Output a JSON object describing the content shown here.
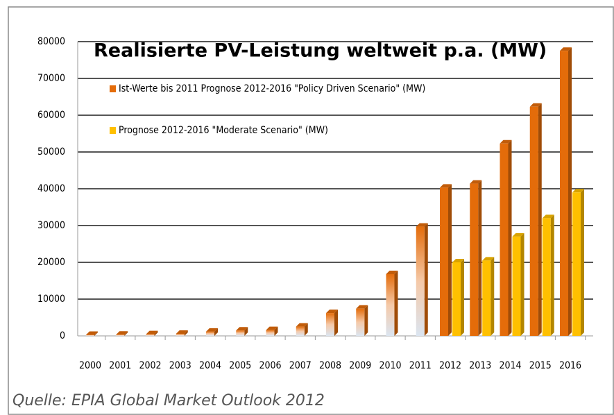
{
  "chart_data": {
    "type": "bar",
    "title": "Realisierte PV-Leistung weltweit p.a. (MW)",
    "source": "Quelle: EPIA Global Market Outlook 2012",
    "categories": [
      "2000",
      "2001",
      "2002",
      "2003",
      "2004",
      "2005",
      "2006",
      "2007",
      "2008",
      "2009",
      "2010",
      "2011",
      "2012",
      "2013",
      "2014",
      "2015",
      "2016"
    ],
    "series": [
      {
        "name": "Ist-Werte bis 2011 Prognose 2012-2016 \"Policy Driven Scenario\" (MW)",
        "color": "#e46c0a",
        "values": [
          277,
          334,
          439,
          575,
          1159,
          1459,
          1571,
          2524,
          6200,
          7400,
          16800,
          29700,
          40300,
          41400,
          52300,
          62300,
          77500
        ]
      },
      {
        "name": "Prognose 2012-2016 \"Moderate Scenario\" (MW)",
        "color": "#ffc000",
        "values": [
          null,
          null,
          null,
          null,
          null,
          null,
          null,
          null,
          null,
          null,
          null,
          null,
          20000,
          20500,
          27000,
          32000,
          39000
        ]
      }
    ],
    "ylim": [
      0,
      80000
    ],
    "yticks": [
      0,
      10000,
      20000,
      30000,
      40000,
      50000,
      60000,
      70000,
      80000
    ],
    "grid": true
  }
}
